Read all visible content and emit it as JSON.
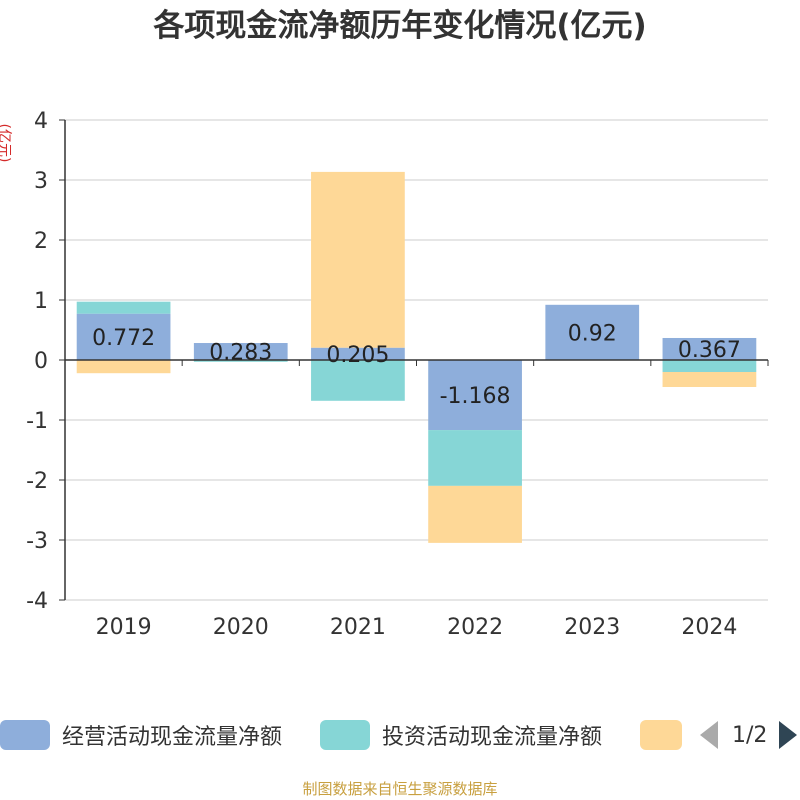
{
  "title": "各项现金流净额历年变化情况(亿元)",
  "unit_label": "(亿元)",
  "source_text": "制图数据来自恒生聚源数据库",
  "legend": {
    "items": [
      {
        "label": "经营活动现金流量净额",
        "color": "#8eaedb"
      },
      {
        "label": "投资活动现金流量净额",
        "color": "#86d6d6"
      },
      {
        "label": "",
        "color": "#fed897"
      }
    ],
    "pager_text": "1/2"
  },
  "chart_data": {
    "type": "bar",
    "stacked": true,
    "title": "各项现金流净额历年变化情况(亿元)",
    "ylabel": "(亿元)",
    "ylim": [
      -4,
      4
    ],
    "yticks": [
      4,
      3,
      2,
      1,
      0,
      -1,
      -2,
      -3,
      -4
    ],
    "categories": [
      "2019",
      "2020",
      "2021",
      "2022",
      "2023",
      "2024"
    ],
    "grid": true,
    "legend_position": "bottom",
    "series": [
      {
        "name": "经营活动现金流量净额",
        "color": "#8eaedb",
        "values": [
          0.772,
          0.283,
          0.205,
          -1.168,
          0.92,
          0.367
        ],
        "labels": [
          "0.772",
          "0.283",
          "0.205",
          "-1.168",
          "0.92",
          "0.367"
        ]
      },
      {
        "name": "投资活动现金流量净额",
        "color": "#86d6d6",
        "values": [
          0.2,
          -0.03,
          -0.68,
          -0.93,
          0.0,
          -0.2
        ]
      },
      {
        "color": "#fed897",
        "values": [
          -0.22,
          0.0,
          2.93,
          -0.95,
          0.0,
          -0.25
        ]
      }
    ]
  }
}
